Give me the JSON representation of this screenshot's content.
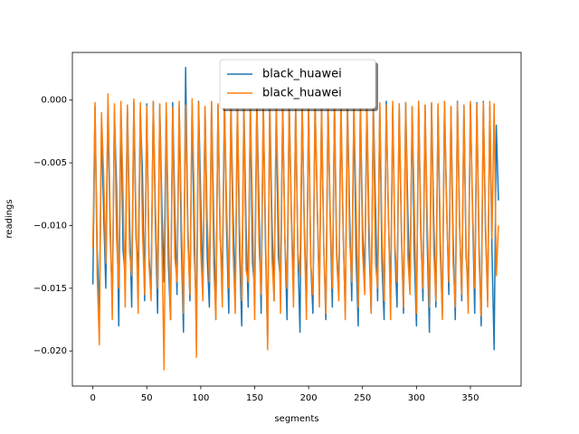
{
  "chart_data": {
    "type": "line",
    "xlabel": "segments",
    "ylabel": "readings",
    "legend": "upper center",
    "xlim": [
      -19,
      397
    ],
    "ylim": [
      -0.0228,
      0.0038
    ],
    "xticks": [
      0,
      50,
      100,
      150,
      200,
      250,
      300,
      350
    ],
    "yticks": [
      {
        "value": -0.02,
        "label": "−0.020"
      },
      {
        "value": -0.015,
        "label": "−0.015"
      },
      {
        "value": -0.01,
        "label": "−0.010"
      },
      {
        "value": -0.005,
        "label": "−0.005"
      },
      {
        "value": 0,
        "label": "0.000"
      }
    ],
    "x": [
      0,
      2,
      4,
      6,
      8,
      10,
      12,
      14,
      16,
      18,
      20,
      22,
      24,
      26,
      28,
      30,
      32,
      34,
      36,
      38,
      40,
      42,
      44,
      46,
      48,
      50,
      52,
      54,
      56,
      58,
      60,
      62,
      64,
      66,
      68,
      70,
      72,
      74,
      76,
      78,
      80,
      82,
      84,
      86,
      88,
      90,
      92,
      94,
      96,
      98,
      100,
      102,
      104,
      106,
      108,
      110,
      112,
      114,
      116,
      118,
      120,
      122,
      124,
      126,
      128,
      130,
      132,
      134,
      136,
      138,
      140,
      142,
      144,
      146,
      148,
      150,
      152,
      154,
      156,
      158,
      160,
      162,
      164,
      166,
      168,
      170,
      172,
      174,
      176,
      178,
      180,
      182,
      184,
      186,
      188,
      190,
      192,
      194,
      196,
      198,
      200,
      202,
      204,
      206,
      208,
      210,
      212,
      214,
      216,
      218,
      220,
      222,
      224,
      226,
      228,
      230,
      232,
      234,
      236,
      238,
      240,
      242,
      244,
      246,
      248,
      250,
      252,
      254,
      256,
      258,
      260,
      262,
      264,
      266,
      268,
      270,
      272,
      274,
      276,
      278,
      280,
      282,
      284,
      286,
      288,
      290,
      292,
      294,
      296,
      298,
      300,
      302,
      304,
      306,
      308,
      310,
      312,
      314,
      316,
      318,
      320,
      322,
      324,
      326,
      328,
      330,
      332,
      334,
      336,
      338,
      340,
      342,
      344,
      346,
      348,
      350,
      352,
      354,
      356,
      358,
      360,
      362,
      364,
      366,
      368,
      370,
      372,
      374,
      376
    ],
    "series": [
      {
        "name": "black_huawei",
        "color": "#1f77b4",
        "values": [
          -0.0147,
          -0.0005,
          -0.012,
          -0.017,
          -0.002,
          -0.009,
          -0.015,
          -0.0003,
          -0.0105,
          -0.016,
          -0.001,
          -0.007,
          -0.018,
          -0.0006,
          -0.012,
          -0.014,
          -0.0004,
          -0.0095,
          -0.0165,
          -0.0002,
          -0.011,
          -0.0135,
          -0.0008,
          -0.006,
          -0.016,
          -0.0003,
          -0.0125,
          -0.015,
          -0.0001,
          -0.01,
          -0.017,
          -0.0004,
          -0.0085,
          -0.0145,
          -0.0007,
          -0.013,
          -0.0175,
          -0.0002,
          -0.009,
          -0.0155,
          -0.0005,
          -0.0115,
          -0.0185,
          0.0026,
          -0.01,
          -0.016,
          -0.0003,
          -0.012,
          -0.017,
          -0.0001,
          -0.008,
          -0.015,
          -0.0006,
          -0.0125,
          -0.0165,
          -0.0002,
          -0.0095,
          -0.0175,
          -0.0004,
          -0.011,
          -0.014,
          -0.0001,
          -0.0105,
          -0.017,
          -0.0003,
          -0.009,
          -0.0155,
          -0.0006,
          -0.012,
          -0.018,
          -0.0002,
          -0.01,
          -0.0165,
          -0.0005,
          -0.013,
          -0.015,
          -0.0001,
          -0.0085,
          -0.017,
          -0.0004,
          -0.0115,
          -0.0193,
          -0.0002,
          -0.0095,
          -0.016,
          -0.0007,
          -0.0125,
          -0.0145,
          -0.0003,
          -0.011,
          -0.0175,
          -0.0001,
          -0.009,
          -0.015,
          -0.0005,
          -0.012,
          -0.0185,
          -0.0002,
          -0.01,
          -0.016,
          -0.0004,
          -0.013,
          -0.017,
          -0.0001,
          -0.0085,
          -0.0155,
          -0.0006,
          -0.0115,
          -0.0175,
          -0.0003,
          -0.0095,
          -0.0165,
          -0.0002,
          -0.012,
          -0.015,
          -0.0005,
          -0.0105,
          -0.017,
          -0.0001,
          -0.009,
          -0.016,
          -0.0004,
          -0.0125,
          -0.018,
          -0.0003,
          -0.01,
          -0.0145,
          -0.0006,
          -0.0115,
          -0.017,
          -0.0002,
          -0.0085,
          -0.016,
          -0.0004,
          -0.013,
          -0.0175,
          -0.0001,
          -0.0095,
          -0.0155,
          -0.0005,
          -0.012,
          -0.0165,
          -0.0003,
          -0.0105,
          -0.017,
          -0.0002,
          -0.009,
          -0.015,
          -0.0006,
          -0.0125,
          -0.018,
          -0.0001,
          -0.01,
          -0.016,
          -0.0004,
          -0.0115,
          -0.0185,
          -0.0003,
          -0.0095,
          -0.0165,
          -0.0005,
          -0.012,
          -0.017,
          -0.0002,
          -0.0085,
          -0.0155,
          -0.0006,
          -0.011,
          -0.0175,
          -0.0001,
          -0.01,
          -0.016,
          -0.0004,
          -0.0125,
          -0.015,
          -0.0003,
          -0.009,
          -0.017,
          -0.0002,
          -0.0115,
          -0.018,
          -0.0001,
          -0.0105,
          -0.016,
          -0.0005,
          -0.012,
          -0.0199,
          -0.002,
          -0.008
        ]
      },
      {
        "name": "black_huawei",
        "color": "#ff7f0e",
        "values": [
          -0.0118,
          -0.0002,
          -0.014,
          -0.0195,
          -0.001,
          -0.006,
          -0.013,
          0.0005,
          -0.009,
          -0.0175,
          -0.0003,
          -0.011,
          -0.015,
          -0.0001,
          -0.0075,
          -0.0165,
          -0.0004,
          -0.012,
          -0.014,
          0.0001,
          -0.0095,
          -0.017,
          -0.0002,
          -0.0105,
          -0.0155,
          -0.0005,
          -0.013,
          -0.016,
          -0.0001,
          -0.0085,
          -0.015,
          -0.0003,
          -0.0115,
          -0.0215,
          -0.0002,
          -0.01,
          -0.0175,
          -0.0006,
          -0.0125,
          -0.0145,
          -0.0001,
          -0.009,
          -0.017,
          -0.0004,
          -0.011,
          -0.0155,
          0.0001,
          -0.008,
          -0.0205,
          -0.0002,
          -0.012,
          -0.016,
          -0.0005,
          -0.0095,
          -0.0145,
          -0.0001,
          -0.013,
          -0.0175,
          -0.0003,
          -0.0105,
          -0.0165,
          -0.0002,
          -0.0085,
          -0.015,
          -0.0004,
          -0.012,
          -0.017,
          -0.0001,
          -0.01,
          -0.016,
          -0.0005,
          -0.0135,
          -0.0145,
          -0.0002,
          -0.009,
          -0.0175,
          -0.0003,
          -0.0115,
          -0.0155,
          -0.0001,
          -0.01,
          -0.0199,
          -0.0004,
          -0.0125,
          -0.016,
          -0.0002,
          -0.0085,
          -0.017,
          -0.0005,
          -0.011,
          -0.015,
          -0.0001,
          -0.0095,
          -0.0165,
          -0.0003,
          -0.012,
          -0.014,
          -0.0002,
          -0.0105,
          -0.0175,
          -0.0004,
          -0.013,
          -0.0155,
          -0.0001,
          -0.008,
          -0.0165,
          -0.0003,
          -0.0115,
          -0.017,
          -0.0002,
          -0.009,
          -0.015,
          -0.0005,
          -0.0125,
          -0.016,
          -0.0001,
          -0.01,
          -0.0175,
          -0.0004,
          -0.011,
          -0.0145,
          -0.0002,
          -0.0085,
          -0.0165,
          -0.0003,
          -0.012,
          -0.0155,
          -0.0001,
          -0.0095,
          -0.017,
          -0.0005,
          -0.013,
          -0.015,
          -0.0002,
          -0.0105,
          -0.016,
          -0.0004,
          -0.009,
          -0.0175,
          -0.0001,
          -0.0115,
          -0.0145,
          -0.0003,
          -0.01,
          -0.0165,
          -0.0002,
          -0.0125,
          -0.0155,
          -0.0005,
          -0.0085,
          -0.017,
          -0.0001,
          -0.011,
          -0.015,
          -0.0004,
          -0.0095,
          -0.0165,
          -0.0002,
          -0.012,
          -0.016,
          -0.0003,
          -0.0105,
          -0.0175,
          -0.0001,
          -0.009,
          -0.0145,
          -0.0005,
          -0.013,
          -0.0165,
          -0.0002,
          -0.01,
          -0.0155,
          -0.0004,
          -0.0115,
          -0.017,
          -0.0001,
          -0.0085,
          -0.015,
          -0.0003,
          -0.0125,
          -0.0172,
          -0.0002,
          -0.0095,
          -0.0165,
          -0.0001,
          -0.011,
          -0.0003,
          -0.014,
          -0.01
        ]
      }
    ]
  }
}
